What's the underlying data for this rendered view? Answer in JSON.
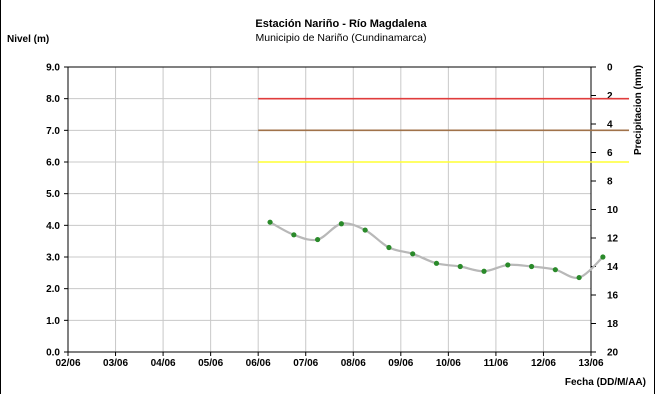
{
  "chart_data": {
    "type": "line",
    "title": "Estación Nariño  - Río Magdalena",
    "subtitle": "Municipio de Nariño (Cundinamarca)",
    "ylabel": "Nivel (m)",
    "y2label": "Precipitacion (mm)",
    "xlabel": "Fecha (DD/M/AA)",
    "x_ticks": [
      "02/06",
      "03/06",
      "04/06",
      "05/06",
      "06/06",
      "07/06",
      "08/06",
      "09/06",
      "10/06",
      "11/06",
      "12/06",
      "13/06"
    ],
    "ylim": [
      0,
      9
    ],
    "y_ticks": [
      "0.0",
      "1.0",
      "2.0",
      "3.0",
      "4.0",
      "5.0",
      "6.0",
      "7.0",
      "8.0",
      "9.0"
    ],
    "y2lim": [
      0,
      20
    ],
    "y2_inverted": true,
    "y2_ticks": [
      "0",
      "2",
      "4",
      "6",
      "8",
      "10",
      "12",
      "14",
      "16",
      "18",
      "20"
    ],
    "grid": true,
    "thresholds": [
      {
        "value": 8.0,
        "from": 4.0,
        "to": 11.8,
        "color": "#e03c3c"
      },
      {
        "value": 7.0,
        "from": 4.0,
        "to": 11.8,
        "color": "#a0724a"
      },
      {
        "value": 6.0,
        "from": 4.0,
        "to": 11.8,
        "color": "#ffff33"
      }
    ],
    "series": [
      {
        "line_color": "#b8b8b8",
        "marker_color": "#2a8a2a",
        "x": [
          4.25,
          4.75,
          5.25,
          5.75,
          6.25,
          6.75,
          7.25,
          7.75,
          8.25,
          8.75,
          9.25,
          9.75,
          10.25,
          10.75,
          11.25
        ],
        "values": [
          4.1,
          3.7,
          3.55,
          4.05,
          3.85,
          3.3,
          3.1,
          2.8,
          2.7,
          2.55,
          2.75,
          2.7,
          2.6,
          2.35,
          3.0
        ]
      }
    ]
  }
}
